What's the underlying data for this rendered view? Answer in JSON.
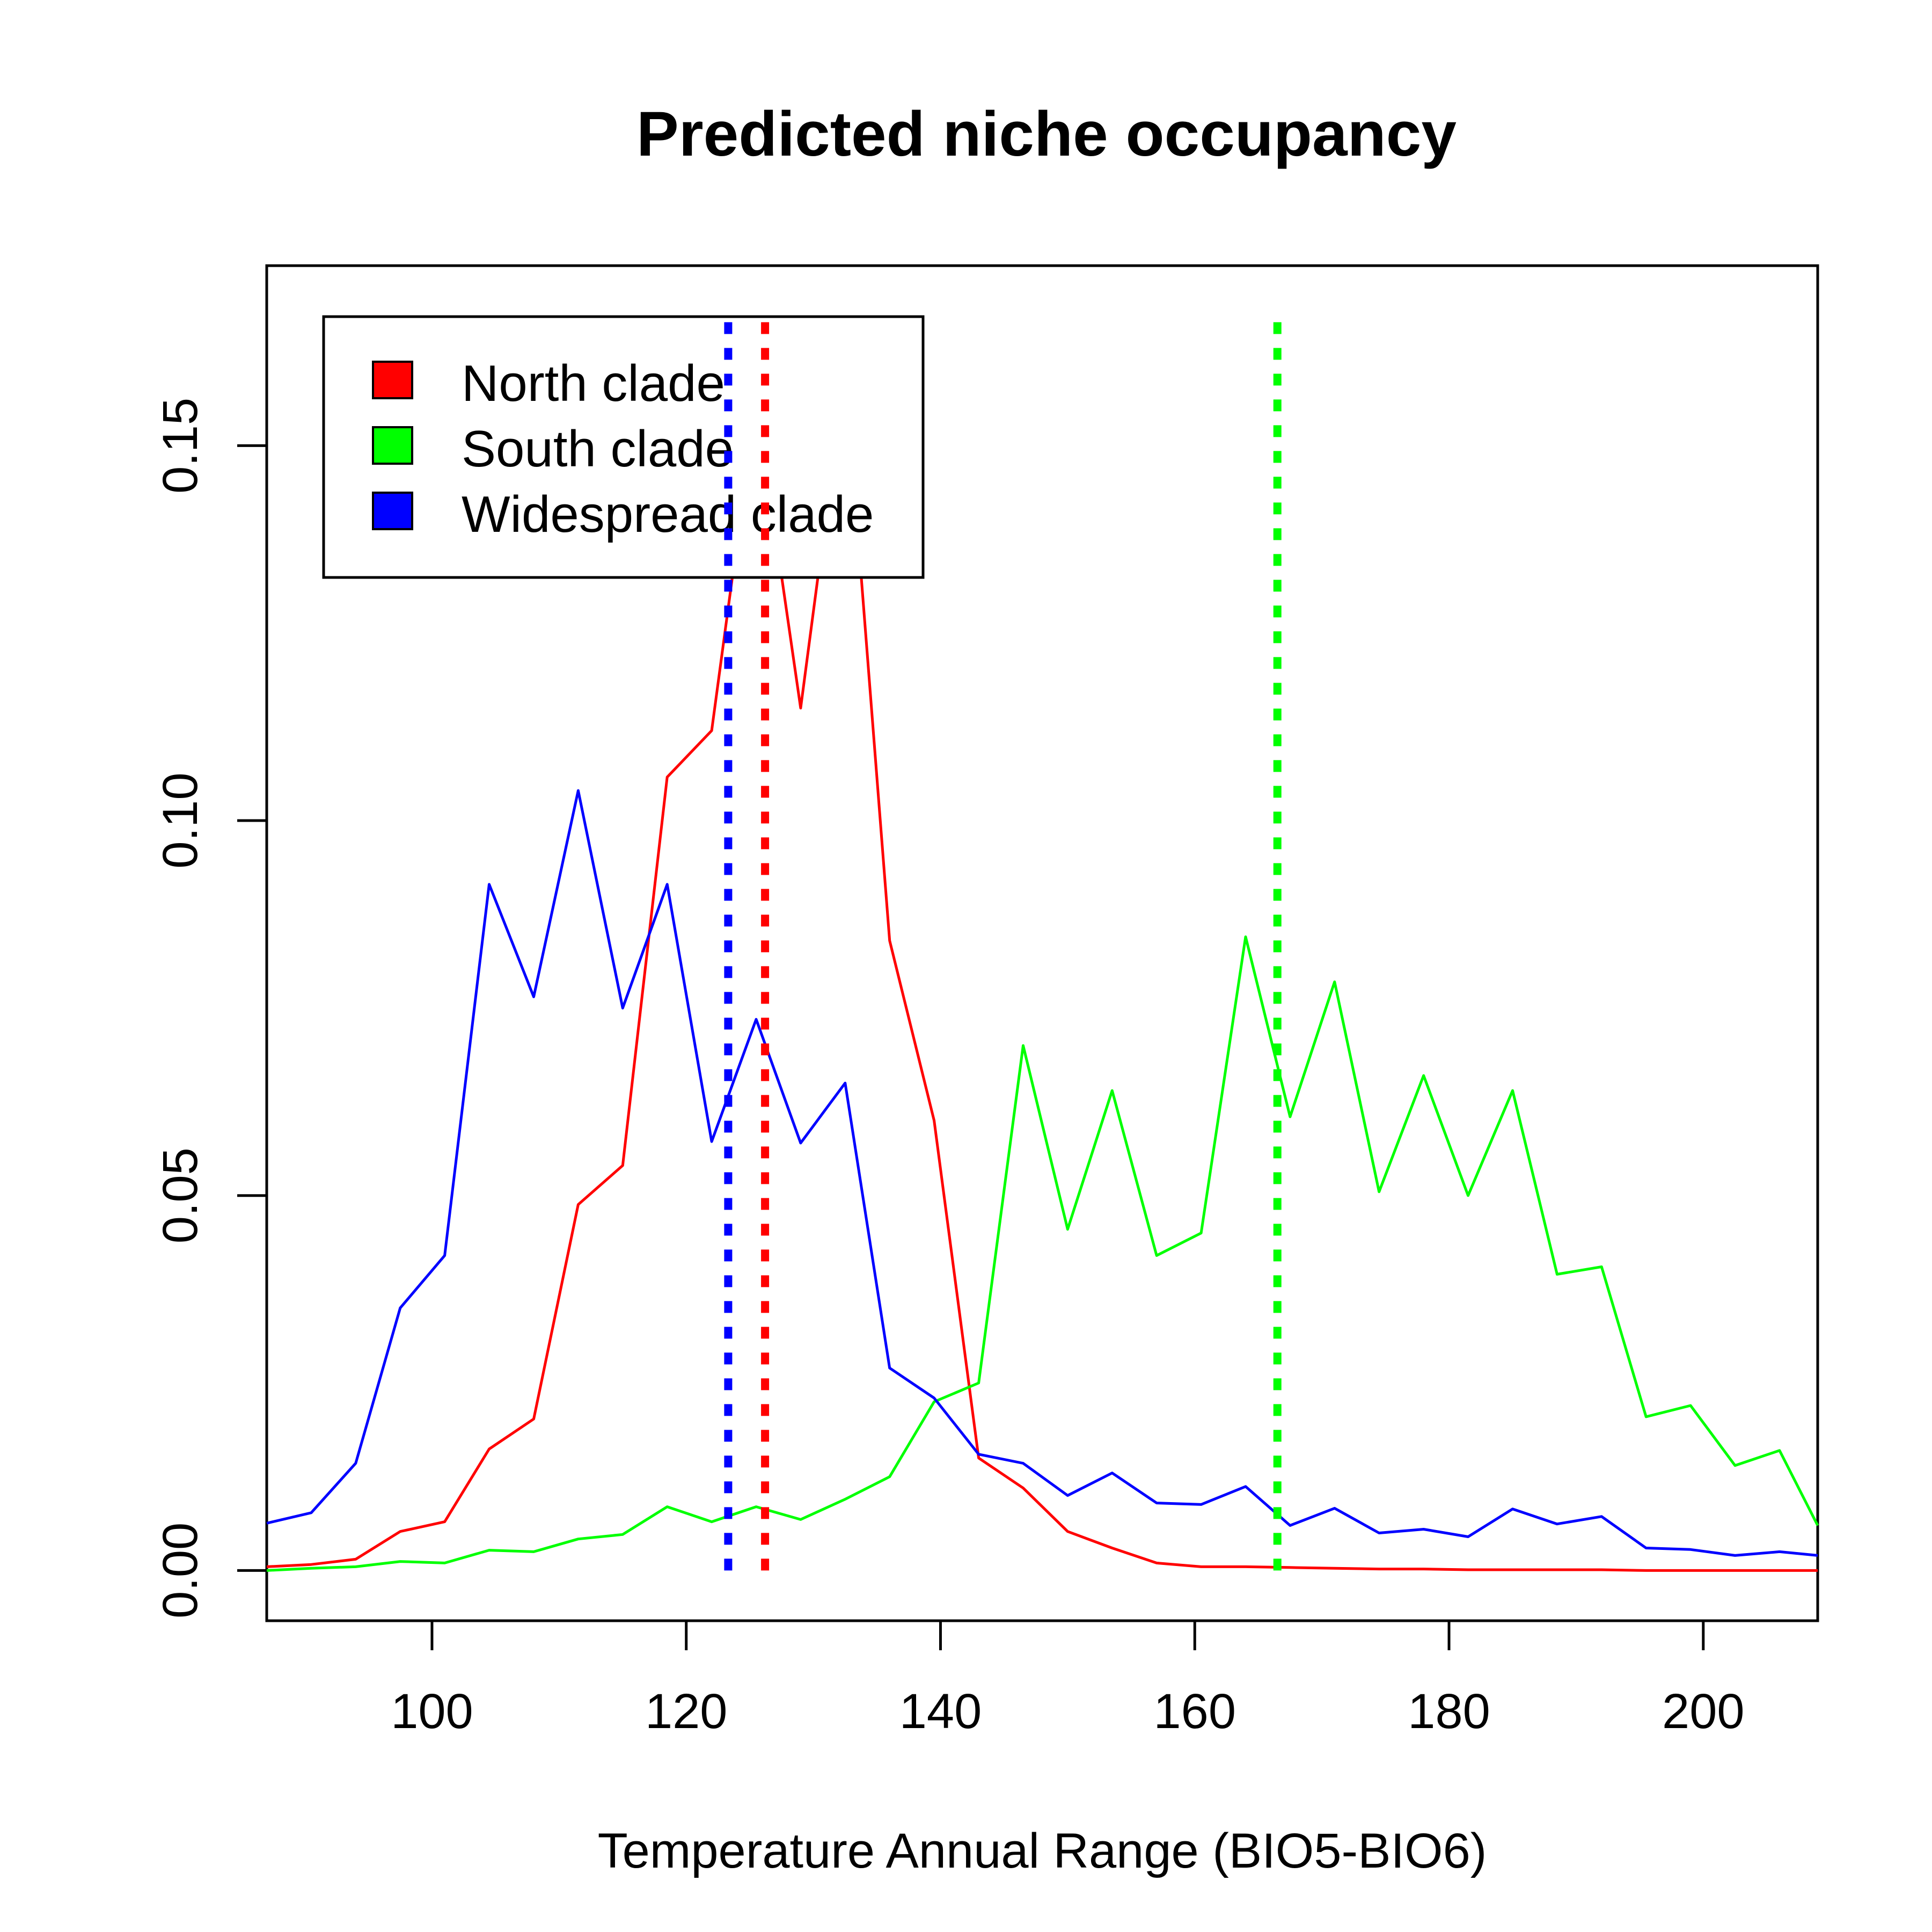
{
  "chart_data": {
    "type": "line",
    "title": "Predicted niche occupancy",
    "xlabel": "Temperature Annual Range (BIO5-BIO6)",
    "ylabel": "",
    "xlim": [
      87,
      209
    ],
    "ylim": [
      -0.0067,
      0.174
    ],
    "x_ticks": [
      100,
      120,
      140,
      160,
      180,
      200
    ],
    "x_tick_labels": [
      "100",
      "120",
      "140",
      "160",
      "180",
      "200"
    ],
    "y_ticks": [
      0,
      0.05,
      0.1,
      0.15
    ],
    "y_tick_labels": [
      "0.00",
      "0.05",
      "0.10",
      "0.15"
    ],
    "grid": false,
    "legend_position": "top-left",
    "x": [
      87,
      90.5,
      94,
      97.5,
      101,
      104.5,
      108,
      111.5,
      115,
      118.5,
      122,
      125.5,
      129,
      132.5,
      136,
      139.5,
      143,
      146.5,
      150,
      153.5,
      157,
      160.5,
      164,
      167.5,
      171,
      174.5,
      178,
      181.5,
      185,
      188.5,
      192,
      195.5,
      199,
      202.5,
      206,
      209
    ],
    "series": [
      {
        "name": "North clade",
        "color": "#ff0000",
        "values": [
          0.0005,
          0.0008,
          0.0015,
          0.0052,
          0.0065,
          0.0162,
          0.0202,
          0.0488,
          0.054,
          0.1058,
          0.112,
          0.156,
          0.115,
          0.16,
          0.084,
          0.06,
          0.015,
          0.011,
          0.0052,
          0.003,
          0.001,
          0.0005,
          0.0005,
          0.0004,
          0.0003,
          0.0002,
          0.0002,
          0.0001,
          0.0001,
          0.0001,
          0.0001,
          0.0,
          0.0,
          0.0,
          0.0,
          0.0
        ]
      },
      {
        "name": "South clade",
        "color": "#00ff00",
        "values": [
          0.0,
          0.0003,
          0.0005,
          0.0012,
          0.001,
          0.0027,
          0.0025,
          0.0042,
          0.0048,
          0.0085,
          0.0065,
          0.0085,
          0.0068,
          0.0095,
          0.0125,
          0.0225,
          0.025,
          0.07,
          0.0455,
          0.064,
          0.042,
          0.045,
          0.0845,
          0.0605,
          0.0785,
          0.0505,
          0.066,
          0.05,
          0.064,
          0.0395,
          0.0405,
          0.0205,
          0.022,
          0.014,
          0.016,
          0.006
        ]
      },
      {
        "name": "Widespread clade",
        "color": "#0000ff",
        "values": [
          0.0063,
          0.0077,
          0.0143,
          0.035,
          0.042,
          0.0915,
          0.0765,
          0.104,
          0.075,
          0.0915,
          0.0572,
          0.0735,
          0.057,
          0.065,
          0.027,
          0.023,
          0.0155,
          0.0143,
          0.01,
          0.013,
          0.009,
          0.0088,
          0.0112,
          0.006,
          0.0083,
          0.005,
          0.0055,
          0.0045,
          0.0082,
          0.0062,
          0.0072,
          0.003,
          0.0028,
          0.002,
          0.0025,
          0.002
        ]
      }
    ],
    "reference_lines": [
      {
        "x": 123.3,
        "color": "#0000ff",
        "style": "dotted"
      },
      {
        "x": 126.2,
        "color": "#ff0000",
        "style": "dotted"
      },
      {
        "x": 166.5,
        "color": "#00ff00",
        "style": "dotted"
      }
    ]
  }
}
